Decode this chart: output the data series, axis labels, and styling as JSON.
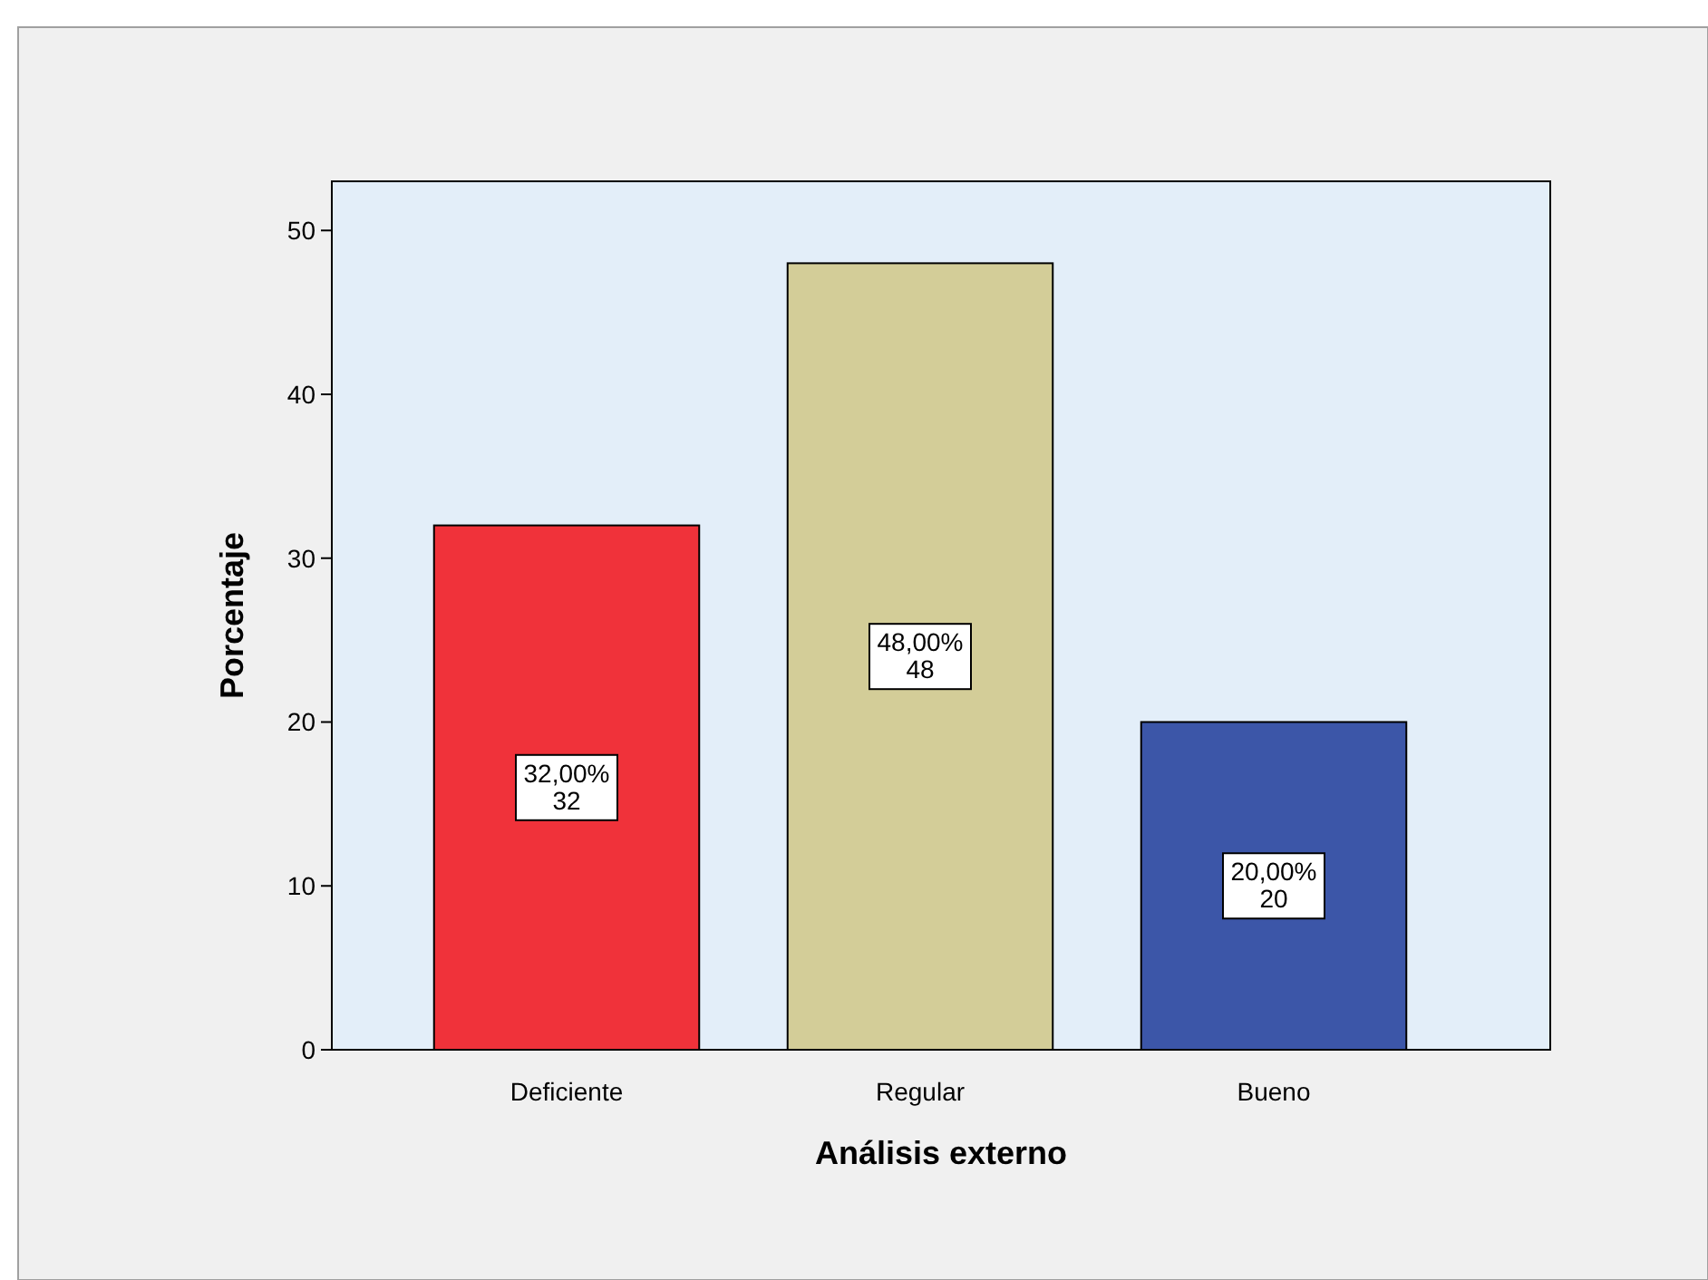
{
  "chart_data": {
    "type": "bar",
    "xlabel": "Análisis externo",
    "ylabel": "Porcentaje",
    "categories": [
      "Deficiente",
      "Regular",
      "Bueno"
    ],
    "values": [
      32,
      48,
      20
    ],
    "colors": [
      "#f0323a",
      "#d3cd98",
      "#3c56a8"
    ],
    "value_labels": [
      "32,00%\n32",
      "48,00%\n48",
      "20,00%\n20"
    ],
    "ylim": [
      0,
      53
    ],
    "yticks": [
      0,
      10,
      20,
      30,
      40,
      50
    ],
    "grid": false
  }
}
